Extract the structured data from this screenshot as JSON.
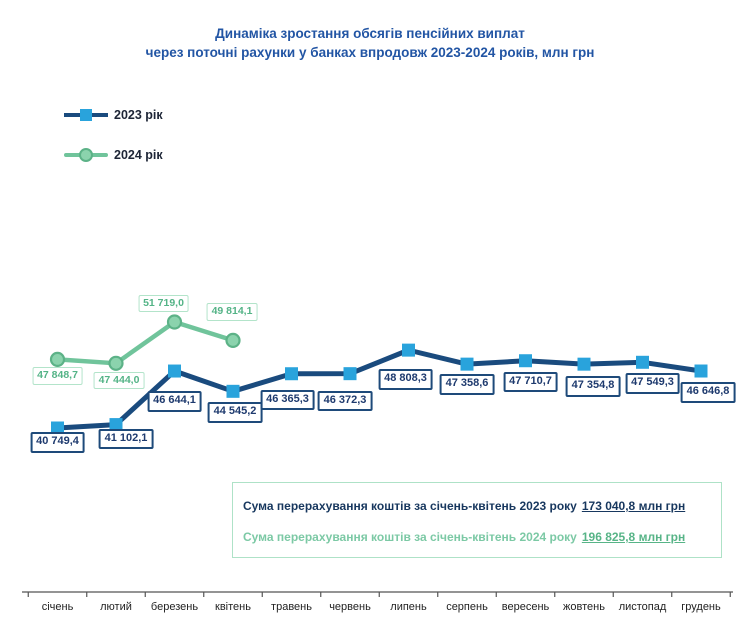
{
  "title": {
    "line1": "Динаміка зростання обсягів пенсійних виплат",
    "line2": "через поточні рахунки у банках впродовж 2023-2024 років, млн грн"
  },
  "legend": [
    {
      "label": "2023 рік"
    },
    {
      "label": "2024 рік"
    }
  ],
  "summary": {
    "line1_text": "Сума перерахування коштів  за січень-квітень 2023 року",
    "line1_value": "173 040,8 млн грн",
    "line2_text": "Сума перерахування коштів  за січень-квітень 2024 року",
    "line2_value": "196 825,8 млн грн"
  },
  "colors": {
    "title_blue": "#2255a4",
    "series_2023_line": "#1a4b7e",
    "series_2023_marker": "#29a3dc",
    "series_2024_line": "#70c49b",
    "series_2024_marker_fill": "#8bd3ad",
    "series_2024_marker_stroke": "#5cb287",
    "label_2023_text": "#1e3a6e",
    "label_2024_text": "#53b386",
    "summary_border_mint": "#aee2c7",
    "axis": "#555555"
  },
  "chart_data": {
    "type": "line",
    "title": "Динаміка зростання обсягів пенсійних виплат через поточні рахунки у банках впродовж 2023-2024 років, млн грн",
    "xlabel": "",
    "ylabel": "млн грн",
    "ylim": [
      40000,
      52500
    ],
    "grid": false,
    "legend_position": "top-left",
    "categories": [
      "січень",
      "лютий",
      "березень",
      "квітень",
      "травень",
      "червень",
      "липень",
      "серпень",
      "вересень",
      "жовтень",
      "листопад",
      "грудень"
    ],
    "series": [
      {
        "name": "2023 рік",
        "marker": "square",
        "line_color": "#1a4b7e",
        "marker_color": "#29a3dc",
        "values": [
          40749.4,
          41102.1,
          46644.1,
          44545.2,
          46365.3,
          46372.3,
          48808.3,
          47358.6,
          47710.7,
          47354.8,
          47549.3,
          46646.8
        ],
        "labels": [
          "40 749,4",
          "41 102,1",
          "46 644,1",
          "44 545,2",
          "46 365,3",
          "46 372,3",
          "48 808,3",
          "47 358,6",
          "47 710,7",
          "47 354,8",
          "47 549,3",
          "46 646,8"
        ]
      },
      {
        "name": "2024 рік",
        "marker": "circle",
        "line_color": "#70c49b",
        "marker_color": "#8bd3ad",
        "marker_stroke": "#5cb287",
        "values": [
          47848.7,
          47444.0,
          51719.0,
          49814.1
        ],
        "labels": [
          "47 848,7",
          "47 444,0",
          "51 719,0",
          "49 814,1"
        ]
      }
    ]
  }
}
